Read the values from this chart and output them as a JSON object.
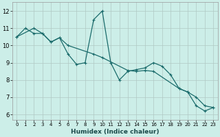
{
  "xlabel": "Humidex (Indice chaleur)",
  "bg_color": "#cceee8",
  "grid_color": "#b0c8c4",
  "line_color": "#1a6b6b",
  "ylim": [
    5.7,
    12.5
  ],
  "xlim": [
    -0.5,
    23.5
  ],
  "yticks": [
    6,
    7,
    8,
    9,
    10,
    11,
    12
  ],
  "xticks": [
    0,
    1,
    2,
    3,
    4,
    5,
    6,
    7,
    8,
    9,
    10,
    11,
    12,
    13,
    14,
    15,
    16,
    17,
    18,
    19,
    20,
    21,
    22,
    23
  ],
  "line1_x": [
    0,
    1,
    2,
    3,
    4,
    5,
    6,
    7,
    8,
    9,
    10,
    11,
    12,
    13,
    14,
    15,
    16,
    17,
    18,
    19,
    20,
    21,
    22,
    23
  ],
  "line1_y": [
    10.5,
    11.0,
    10.7,
    10.7,
    10.2,
    10.45,
    9.5,
    8.9,
    9.0,
    11.5,
    12.0,
    9.0,
    8.0,
    8.5,
    8.6,
    8.7,
    9.0,
    8.8,
    8.3,
    7.5,
    7.3,
    6.5,
    6.2,
    6.4
  ],
  "line2_x": [
    0,
    2,
    3,
    4,
    5,
    6,
    9,
    10,
    13,
    14,
    15,
    16,
    19,
    20,
    21,
    22,
    23
  ],
  "line2_y": [
    10.5,
    11.0,
    10.7,
    10.2,
    10.45,
    10.0,
    9.5,
    9.3,
    8.55,
    8.5,
    8.55,
    8.5,
    7.5,
    7.3,
    7.0,
    6.5,
    6.4
  ]
}
